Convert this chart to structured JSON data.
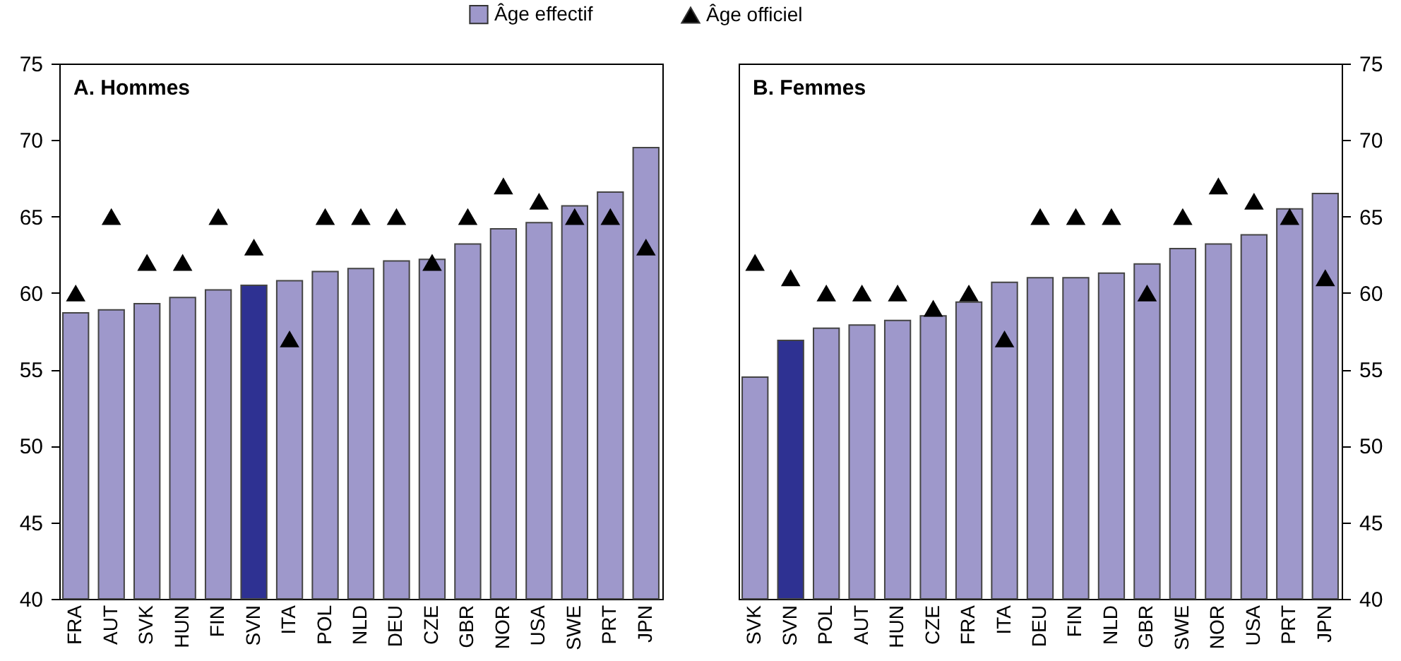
{
  "chart_data": [
    {
      "type": "bar",
      "title": "A. Hommes",
      "categories": [
        "FRA",
        "AUT",
        "SVK",
        "HUN",
        "FIN",
        "SVN",
        "ITA",
        "POL",
        "NLD",
        "DEU",
        "CZE",
        "GBR",
        "NOR",
        "USA",
        "SWE",
        "PRT",
        "JPN"
      ],
      "series": [
        {
          "name": "Âge effectif",
          "color": "#9e98cb",
          "colors": [
            "#9e98cb",
            "#9e98cb",
            "#9e98cb",
            "#9e98cb",
            "#9e98cb",
            "#2e3192",
            "#9e98cb",
            "#9e98cb",
            "#9e98cb",
            "#9e98cb",
            "#9e98cb",
            "#9e98cb",
            "#9e98cb",
            "#9e98cb",
            "#9e98cb",
            "#9e98cb",
            "#9e98cb"
          ],
          "values": [
            58.7,
            58.9,
            59.3,
            59.7,
            60.2,
            60.5,
            60.8,
            61.4,
            61.6,
            62.1,
            62.2,
            63.2,
            64.2,
            64.6,
            65.7,
            66.6,
            69.5
          ]
        },
        {
          "name": "Âge officiel",
          "type": "scatter",
          "marker": "triangle",
          "color": "#000000",
          "values": [
            60,
            65,
            62,
            62,
            65,
            63,
            57,
            65,
            65,
            65,
            62,
            65,
            67,
            66,
            65,
            65,
            63
          ]
        }
      ],
      "ylim": [
        40,
        75
      ],
      "yticks": [
        40,
        45,
        50,
        55,
        60,
        65,
        70,
        75
      ],
      "legend": "top"
    },
    {
      "type": "bar",
      "title": "B. Femmes",
      "categories": [
        "SVK",
        "SVN",
        "POL",
        "AUT",
        "HUN",
        "CZE",
        "FRA",
        "ITA",
        "DEU",
        "FIN",
        "NLD",
        "GBR",
        "SWE",
        "NOR",
        "USA",
        "PRT",
        "JPN"
      ],
      "series": [
        {
          "axis": "y2",
          "colors": [
            "#9e98cb",
            "#2e3192",
            "#9e98cb",
            "#9e98cb",
            "#9e98cb",
            "#9e98cb",
            "#9e98cb",
            "#9e98cb",
            "#9e98cb",
            "#9e98cb",
            "#9e98cb",
            "#9e98cb",
            "#9e98cb",
            "#9e98cb",
            "#9e98cb",
            "#9e98cb",
            "#9e98cb"
          ],
          "values": [
            54.5,
            56.9,
            57.7,
            57.9,
            58.2,
            58.5,
            59.4,
            60.7,
            61.0,
            61.0,
            61.3,
            61.9,
            62.9,
            63.2,
            63.8,
            65.5,
            66.5
          ]
        },
        {
          "type": "scatter",
          "axis": "y2",
          "marker": "triangle",
          "color": "#000000",
          "values": [
            62,
            61,
            60,
            60,
            60,
            59,
            60,
            57,
            65,
            65,
            65,
            60,
            65,
            67,
            66,
            65,
            61
          ]
        }
      ],
      "y2lim": [
        40,
        75
      ],
      "y2ticks": [
        40,
        45,
        50,
        55,
        60,
        65,
        70,
        75
      ]
    }
  ]
}
